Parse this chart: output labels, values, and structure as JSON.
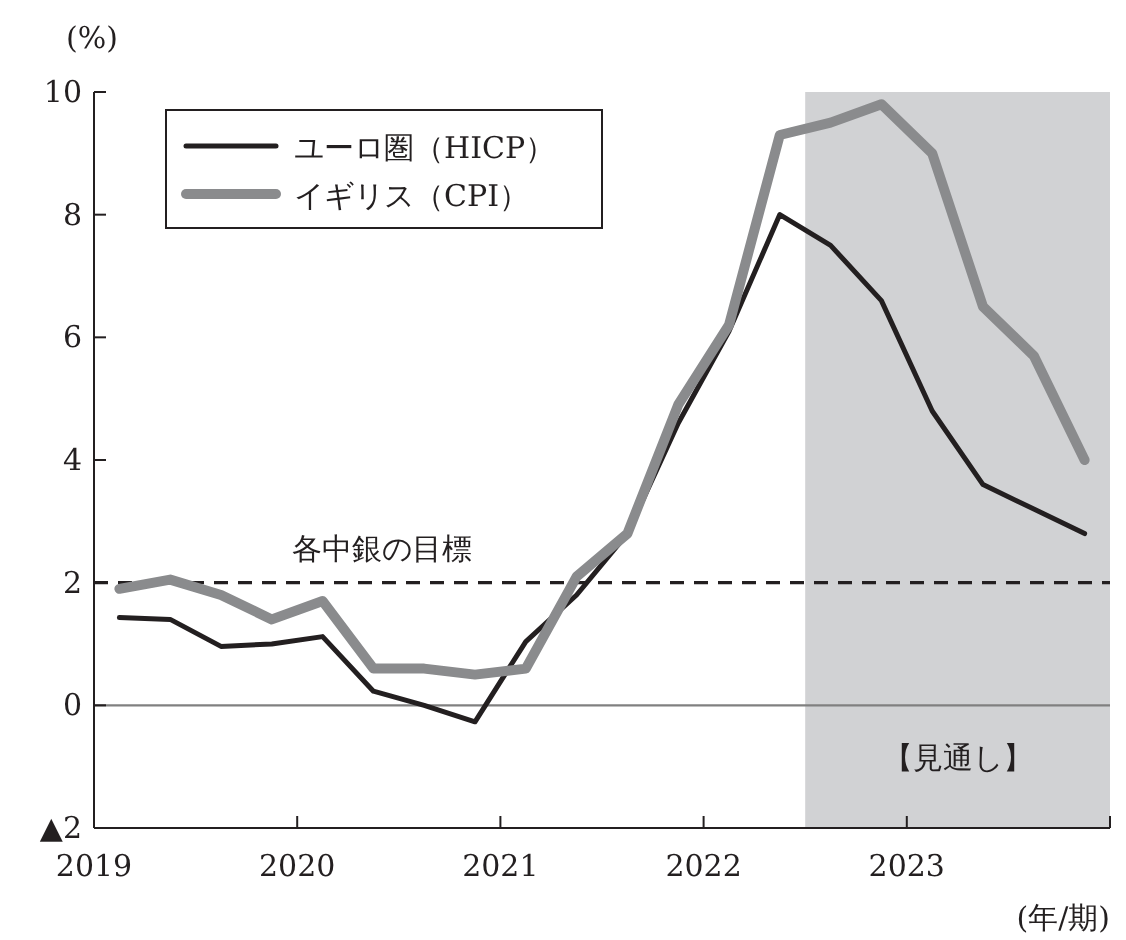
{
  "chart_data": {
    "type": "line",
    "ylabel": "(%)",
    "xlabel": "(年/期)",
    "x": [
      2019.125,
      2019.375,
      2019.625,
      2019.875,
      2020.125,
      2020.375,
      2020.625,
      2020.875,
      2021.125,
      2021.375,
      2021.625,
      2021.875,
      2022.125,
      2022.375,
      2022.625,
      2022.875,
      2023.125,
      2023.375,
      2023.625,
      2023.875
    ],
    "series": [
      {
        "name": "ユーロ圏（HICP）",
        "color": "#231f20",
        "values": [
          1.43,
          1.4,
          0.96,
          1.0,
          1.12,
          0.23,
          0.0,
          -0.27,
          1.04,
          1.8,
          2.8,
          4.6,
          6.1,
          8.0,
          7.5,
          6.6,
          4.8,
          3.6,
          3.2,
          2.8
        ]
      },
      {
        "name": "イギリス（CPI）",
        "color": "#8a8b8d",
        "values": [
          1.9,
          2.05,
          1.8,
          1.4,
          1.7,
          0.6,
          0.6,
          0.5,
          0.6,
          2.1,
          2.8,
          4.9,
          6.2,
          9.3,
          9.5,
          9.8,
          9.0,
          6.5,
          5.7,
          4.0
        ]
      }
    ],
    "xlim": [
      2019,
      2024
    ],
    "xticks": [
      2019,
      2020,
      2021,
      2022,
      2023,
      {
        "value": 2024,
        "label": null
      }
    ],
    "ylim": [
      -2,
      10
    ],
    "yticks": [
      {
        "value": -2,
        "label": "▲2"
      },
      0,
      2,
      4,
      6,
      8,
      10
    ],
    "ref_lines": [
      {
        "axis": "y",
        "value": 0,
        "color": "#808080",
        "line_style": "solid"
      },
      {
        "axis": "y",
        "value": 2,
        "label": "各中銀の目標",
        "color": "#231f20",
        "line_style": "dashed"
      }
    ],
    "bands": [
      {
        "axis": "x",
        "from": 2022.5,
        "to": 2024,
        "label": "【見通し】",
        "color": "#d1d2d4"
      }
    ],
    "legend": "top left",
    "line_style": "solid"
  }
}
